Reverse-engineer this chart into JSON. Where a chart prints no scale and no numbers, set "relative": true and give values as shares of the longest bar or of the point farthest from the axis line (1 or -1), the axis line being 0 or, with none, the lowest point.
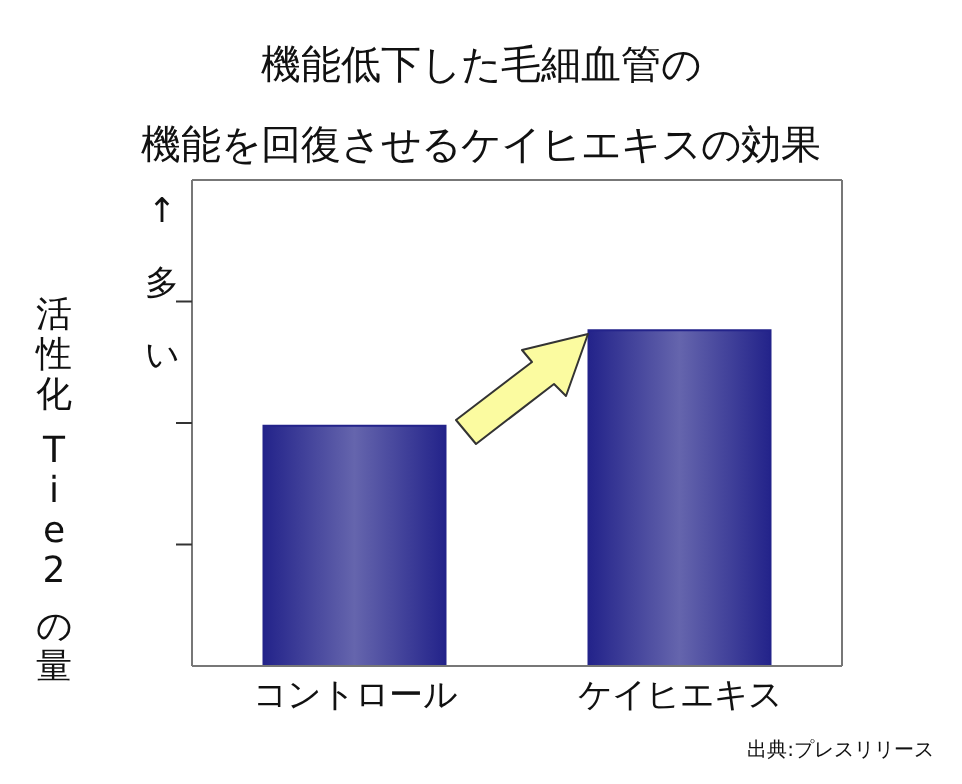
{
  "chart_data": {
    "type": "bar",
    "title": "機能低下した毛細血管の機能を回復させるケイヒエキスの効果",
    "ylabel": "活性化 Tie2 の量",
    "categories": [
      "コントロール",
      "ケイヒエキス"
    ],
    "values": [
      0.715,
      1
    ],
    "color": "#23238a",
    "relative": true,
    "annotations": [
      "↑多い",
      "出典:プレスリリース"
    ]
  }
}
